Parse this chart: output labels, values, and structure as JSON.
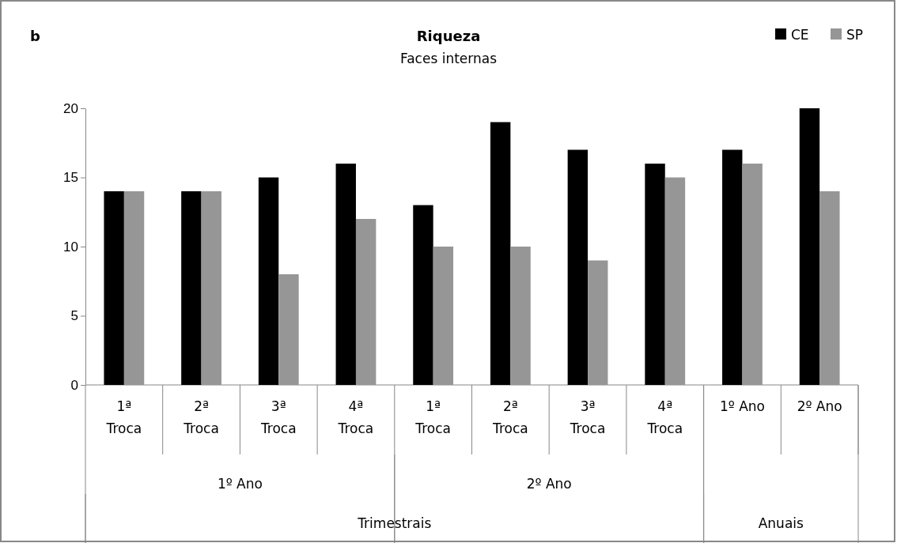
{
  "chart_data": {
    "type": "bar",
    "title": "Riqueza",
    "subtitle": "Faces internas",
    "categories": [
      "1ª Troca",
      "2ª Troca",
      "3ª Troca",
      "4ª Troca",
      "1ª Troca",
      "2ª Troca",
      "3ª Troca",
      "4ª Troca",
      "1º Ano",
      "2º Ano"
    ],
    "series": [
      {
        "name": "CE",
        "color": "#000000",
        "values": [
          14,
          14,
          15,
          16,
          13,
          19,
          17,
          16,
          17,
          20
        ]
      },
      {
        "name": "SP",
        "color": "#969696",
        "values": [
          14,
          14,
          8,
          12,
          10,
          10,
          9,
          15,
          16,
          14
        ]
      }
    ],
    "ylim": [
      0,
      20
    ],
    "yticks": [
      0,
      5,
      10,
      15,
      20
    ],
    "grid": false,
    "legend": "top right",
    "annotations": [
      "b",
      "1º Ano",
      "2º Ano",
      "Trimestrais",
      "Anuais"
    ]
  }
}
